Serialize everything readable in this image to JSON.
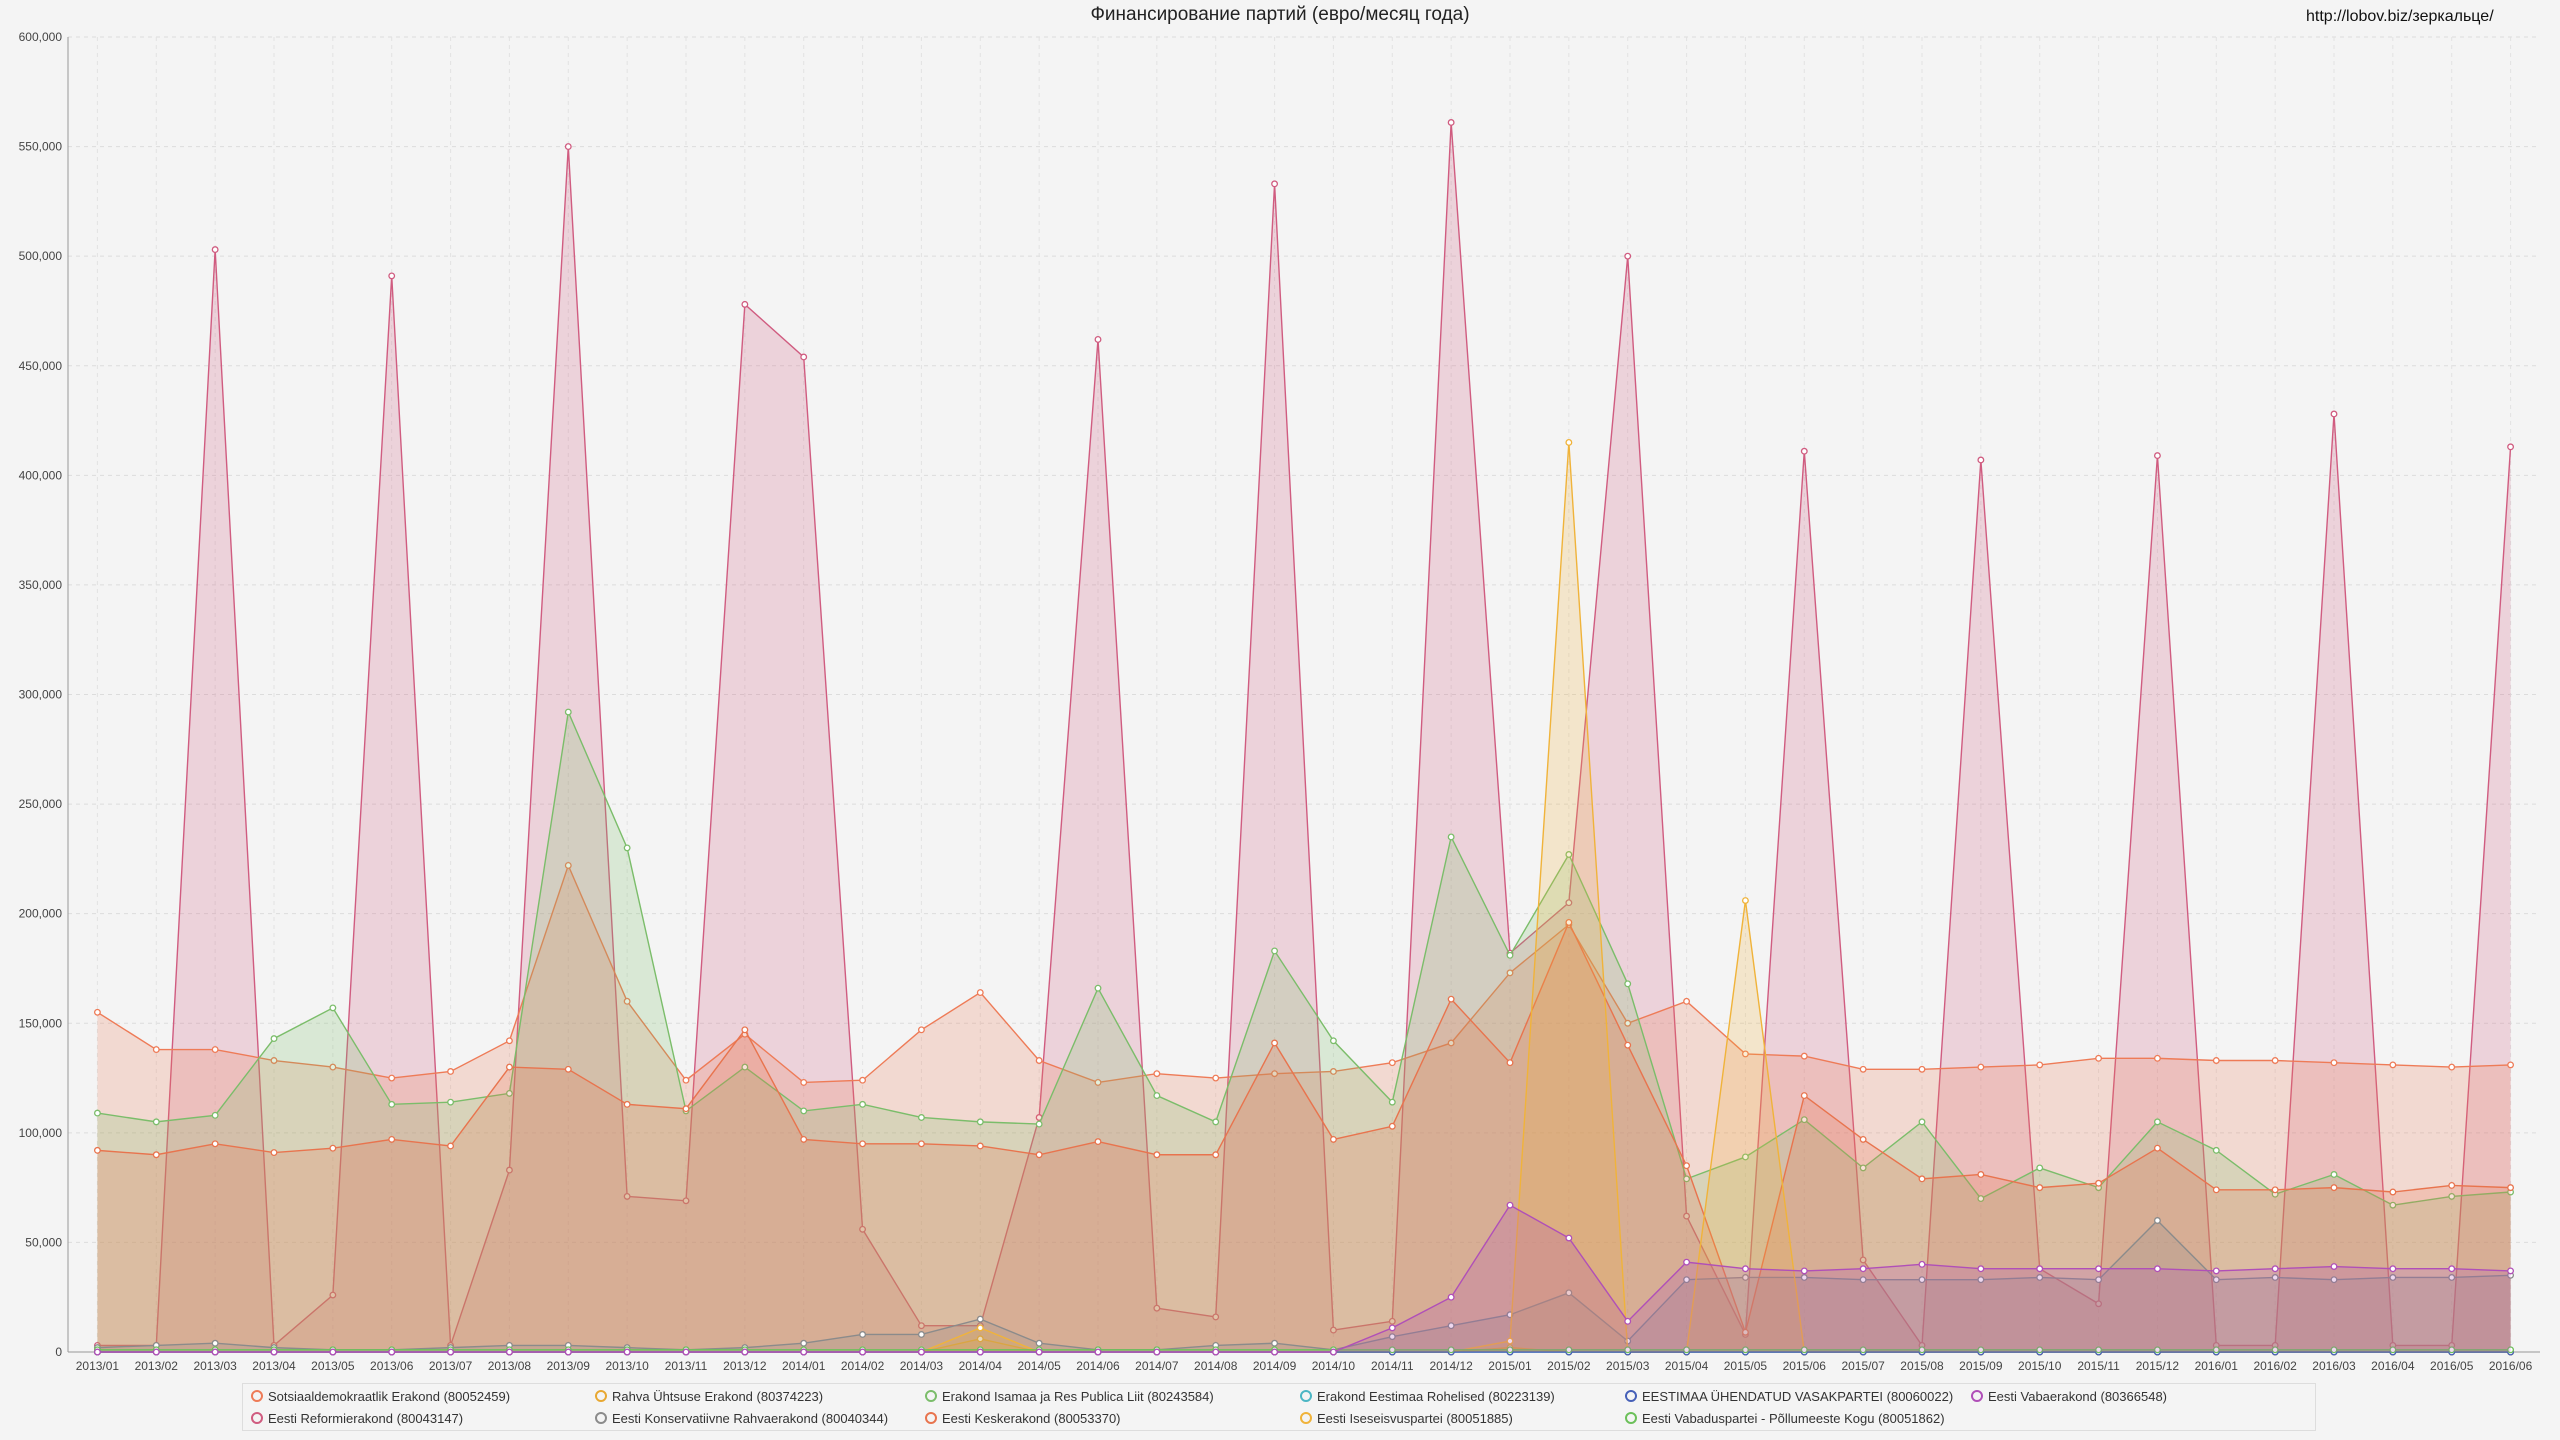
{
  "page": {
    "title": "Финансирование партий (евро/месяц года)",
    "url_text": "http://lobov.biz/зеркальце/"
  },
  "chart_data": {
    "type": "area",
    "title": "Финансирование партий (евро/месяц года)",
    "xlabel": "",
    "ylabel": "",
    "ylim": [
      0,
      600000
    ],
    "yticks": [
      0,
      50000,
      100000,
      150000,
      200000,
      250000,
      300000,
      350000,
      400000,
      450000,
      500000,
      550000,
      600000
    ],
    "ytick_labels": [
      "0",
      "50,000",
      "100,000",
      "150,000",
      "200,000",
      "250,000",
      "300,000",
      "350,000",
      "400,000",
      "450,000",
      "500,000",
      "550,000",
      "600,000"
    ],
    "grid": true,
    "legend_position": "bottom",
    "categories": [
      "2013/01",
      "2013/02",
      "2013/03",
      "2013/04",
      "2013/05",
      "2013/06",
      "2013/07",
      "2013/08",
      "2013/09",
      "2013/10",
      "2013/11",
      "2013/12",
      "2014/01",
      "2014/02",
      "2014/03",
      "2014/04",
      "2014/05",
      "2014/06",
      "2014/07",
      "2014/08",
      "2014/09",
      "2014/10",
      "2014/11",
      "2014/12",
      "2015/01",
      "2015/02",
      "2015/03",
      "2015/04",
      "2015/05",
      "2015/06",
      "2015/07",
      "2015/08",
      "2015/09",
      "2015/10",
      "2015/11",
      "2015/12",
      "2016/01",
      "2016/02",
      "2016/03",
      "2016/04",
      "2016/05",
      "2016/06"
    ],
    "series": [
      {
        "name": "Eesti Reformierakond (80043147)",
        "color": "#d05c80",
        "values": [
          3000,
          3000,
          503000,
          3000,
          26000,
          491000,
          3000,
          83000,
          550000,
          71000,
          69000,
          478000,
          454000,
          56000,
          12000,
          12000,
          107000,
          462000,
          20000,
          16000,
          533000,
          10000,
          14000,
          561000,
          182000,
          205000,
          500000,
          62000,
          8000,
          411000,
          42000,
          3000,
          407000,
          38000,
          22000,
          409000,
          3000,
          3000,
          428000,
          3000,
          3000,
          413000
        ]
      },
      {
        "name": "Sotsiaaldemokraatlik Erakond (80052459)",
        "color": "#ee7b57",
        "values": [
          155000,
          138000,
          138000,
          133000,
          130000,
          125000,
          128000,
          142000,
          222000,
          160000,
          124000,
          145000,
          123000,
          124000,
          147000,
          164000,
          133000,
          123000,
          127000,
          125000,
          127000,
          128000,
          132000,
          141000,
          173000,
          195000,
          150000,
          160000,
          136000,
          135000,
          129000,
          129000,
          130000,
          131000,
          134000,
          134000,
          133000,
          133000,
          132000,
          131000,
          130000,
          131000
        ]
      },
      {
        "name": "Erakond Isamaa ja Res Publica Liit (80243584)",
        "color": "#7bbd6a",
        "values": [
          109000,
          105000,
          108000,
          143000,
          157000,
          113000,
          114000,
          118000,
          292000,
          230000,
          110000,
          130000,
          110000,
          113000,
          107000,
          105000,
          104000,
          166000,
          117000,
          105000,
          183000,
          142000,
          114000,
          235000,
          181000,
          227000,
          168000,
          79000,
          89000,
          106000,
          84000,
          105000,
          70000,
          84000,
          75000,
          105000,
          92000,
          72000,
          81000,
          67000,
          71000,
          73000
        ]
      },
      {
        "name": "Eesti Keskerakond (80053370)",
        "color": "#e8744e",
        "values": [
          92000,
          90000,
          95000,
          91000,
          93000,
          97000,
          94000,
          130000,
          129000,
          113000,
          111000,
          147000,
          97000,
          95000,
          95000,
          94000,
          90000,
          96000,
          90000,
          90000,
          141000,
          97000,
          103000,
          161000,
          132000,
          196000,
          140000,
          85000,
          9000,
          117000,
          97000,
          79000,
          81000,
          75000,
          77000,
          93000,
          74000,
          74000,
          75000,
          73000,
          76000,
          75000
        ]
      },
      {
        "name": "Rahva Ühtsuse Erakond (80374223)",
        "color": "#e8a832",
        "values": [
          0,
          0,
          0,
          0,
          0,
          0,
          0,
          0,
          0,
          0,
          0,
          0,
          0,
          0,
          0,
          6000,
          0,
          0,
          0,
          0,
          0,
          0,
          0,
          0,
          2000,
          0,
          0,
          0,
          0,
          0,
          0,
          0,
          0,
          0,
          0,
          0,
          0,
          0,
          0,
          0,
          0,
          0
        ]
      },
      {
        "name": "Eesti Konservatiivne Rahvaerakond (80040344)",
        "color": "#8b8b8b",
        "values": [
          2000,
          3000,
          4000,
          2000,
          1000,
          1000,
          2000,
          3000,
          3000,
          2000,
          1000,
          2000,
          4000,
          8000,
          8000,
          15000,
          4000,
          1000,
          1000,
          3000,
          4000,
          1000,
          7000,
          12000,
          17000,
          27000,
          5000,
          33000,
          34000,
          34000,
          33000,
          33000,
          33000,
          34000,
          33000,
          60000,
          33000,
          34000,
          33000,
          34000,
          34000,
          35000
        ]
      },
      {
        "name": "Erakond Eestimaa Rohelised (80223139)",
        "color": "#4cb6c4",
        "values": [
          0,
          0,
          0,
          0,
          0,
          0,
          0,
          0,
          0,
          0,
          0,
          0,
          0,
          0,
          0,
          0,
          0,
          0,
          0,
          0,
          0,
          0,
          0,
          0,
          0,
          0,
          0,
          0,
          0,
          0,
          0,
          0,
          0,
          0,
          0,
          0,
          0,
          0,
          0,
          0,
          0,
          0
        ]
      },
      {
        "name": "Eesti Iseseisvuspartei (80051885)",
        "color": "#f0b33a",
        "values": [
          0,
          0,
          0,
          0,
          0,
          0,
          0,
          0,
          0,
          0,
          0,
          0,
          0,
          0,
          0,
          11000,
          0,
          0,
          0,
          0,
          0,
          0,
          0,
          0,
          5000,
          415000,
          0,
          0,
          206000,
          0,
          0,
          0,
          0,
          0,
          0,
          0,
          0,
          0,
          0,
          0,
          0,
          0
        ]
      },
      {
        "name": "EESTIMAA ÜHENDATUD VASAKPARTEI (80060022)",
        "color": "#4660b8",
        "values": [
          0,
          0,
          0,
          0,
          0,
          0,
          0,
          0,
          0,
          0,
          0,
          0,
          0,
          0,
          0,
          0,
          0,
          0,
          0,
          0,
          0,
          0,
          0,
          0,
          0,
          0,
          0,
          0,
          0,
          0,
          0,
          0,
          0,
          0,
          0,
          0,
          0,
          0,
          0,
          0,
          0,
          0
        ]
      },
      {
        "name": "Eesti Vabaduspartei - Põllumeeste Kogu (80051862)",
        "color": "#6cc05a",
        "values": [
          1000,
          1000,
          1000,
          1000,
          1000,
          1000,
          1000,
          1000,
          1000,
          1000,
          1000,
          1000,
          1000,
          1000,
          1000,
          1000,
          1000,
          1000,
          1000,
          1000,
          1000,
          1000,
          1000,
          1000,
          1000,
          1000,
          1000,
          1000,
          1000,
          1000,
          1000,
          1000,
          1000,
          1000,
          1000,
          1000,
          1000,
          1000,
          1000,
          1000,
          1000,
          1000
        ]
      },
      {
        "name": "Eesti Vabaerakond (80366548)",
        "color": "#b04fb8",
        "values": [
          0,
          0,
          0,
          0,
          0,
          0,
          0,
          0,
          0,
          0,
          0,
          0,
          0,
          0,
          0,
          0,
          0,
          0,
          0,
          0,
          0,
          0,
          11000,
          25000,
          67000,
          52000,
          14000,
          41000,
          38000,
          37000,
          38000,
          40000,
          38000,
          38000,
          38000,
          38000,
          37000,
          38000,
          39000,
          38000,
          38000,
          37000
        ]
      }
    ]
  },
  "legend": [
    {
      "label": "Sotsiaaldemokraatlik Erakond (80052459)",
      "color": "#ee7b57"
    },
    {
      "label": "Rahva Ühtsuse Erakond (80374223)",
      "color": "#e8a832"
    },
    {
      "label": "Erakond Isamaa ja Res Publica Liit (80243584)",
      "color": "#7bbd6a"
    },
    {
      "label": "Erakond Eestimaa Rohelised (80223139)",
      "color": "#4cb6c4"
    },
    {
      "label": "EESTIMAA ÜHENDATUD VASAKPARTEI (80060022)",
      "color": "#4660b8"
    },
    {
      "label": "Eesti Vabaerakond (80366548)",
      "color": "#b04fb8"
    },
    {
      "label": "Eesti Reformierakond (80043147)",
      "color": "#d05c80"
    },
    {
      "label": "Eesti Konservatiivne Rahvaerakond (80040344)",
      "color": "#8b8b8b"
    },
    {
      "label": "Eesti Keskerakond (80053370)",
      "color": "#e8744e"
    },
    {
      "label": "Eesti Iseseisvuspartei (80051885)",
      "color": "#f0b33a"
    },
    {
      "label": "Eesti Vabaduspartei - Põllumeeste Kogu (80051862)",
      "color": "#6cc05a"
    }
  ]
}
